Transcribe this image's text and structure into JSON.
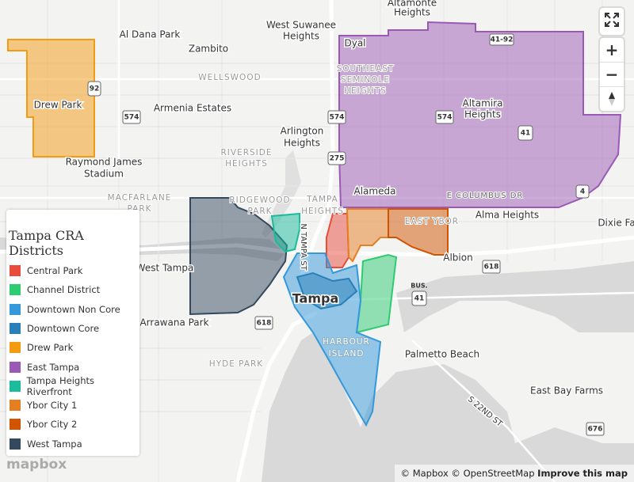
{
  "map": {
    "labels": [
      [
        "Altamonte",
        "Heights"
      ],
      "Al Dana Park",
      [
        "West Suwanee",
        "Heights"
      ],
      "Zambito",
      "Dyal",
      [
        "SOUTHEAST",
        "SEMINOLE",
        "HEIGHTS"
      ],
      "WELLSWOOD",
      "Drew Park",
      "Armenia Estates",
      [
        "Altamira",
        "Heights"
      ],
      [
        "Arlington",
        "Heights"
      ],
      [
        "RIVERSIDE",
        "HEIGHTS"
      ],
      [
        "Raymond James",
        "Stadium"
      ],
      [
        "MACFARLANE",
        "PARK"
      ],
      [
        "RIDGEWOOD",
        "PARK"
      ],
      [
        "TAMPA",
        "HEIGHTS"
      ],
      "Alameda",
      "E COLUMBUS DR",
      "Alma Heights",
      "Dixie Fa",
      "EAST YBOR",
      "Albion",
      "West Tampa",
      "Tampa",
      "Arrawana Park",
      [
        "HARBOUR",
        "ISLAND"
      ],
      "Palmetto Beach",
      "HYDE PARK",
      "East Bay Farms",
      "S 22ND ST",
      "N TAMPA ST"
    ],
    "shields": [
      "92",
      "574",
      "574",
      "574",
      "41-92",
      "41",
      "4",
      "275",
      "618",
      [
        "BUS.",
        "41"
      ],
      "618",
      "676"
    ]
  },
  "legend": {
    "title": "Tampa CRA Districts",
    "items": [
      {
        "name": "Central Park",
        "color": "#e74c3c"
      },
      {
        "name": "Channel District",
        "color": "#2ecc71"
      },
      {
        "name": "Downtown Non Core",
        "color": "#3498db"
      },
      {
        "name": "Downtown Core",
        "color": "#2980b9"
      },
      {
        "name": "Drew Park",
        "color": "#f39c12"
      },
      {
        "name": "East Tampa",
        "color": "#9b59b6"
      },
      {
        "name": "Tampa Heights Riverfront",
        "color": "#1abc9c"
      },
      {
        "name": "Ybor City 1",
        "color": "#e67e22"
      },
      {
        "name": "Ybor City 2",
        "color": "#d35400"
      },
      {
        "name": "West Tampa",
        "color": "#34495e"
      }
    ]
  },
  "controls": {
    "zoom_in": "+",
    "zoom_out": "−"
  },
  "attribution": {
    "logo": "mapbox",
    "mapbox": "© Mapbox",
    "osm": "© OpenStreetMap",
    "improve": "Improve this map"
  }
}
